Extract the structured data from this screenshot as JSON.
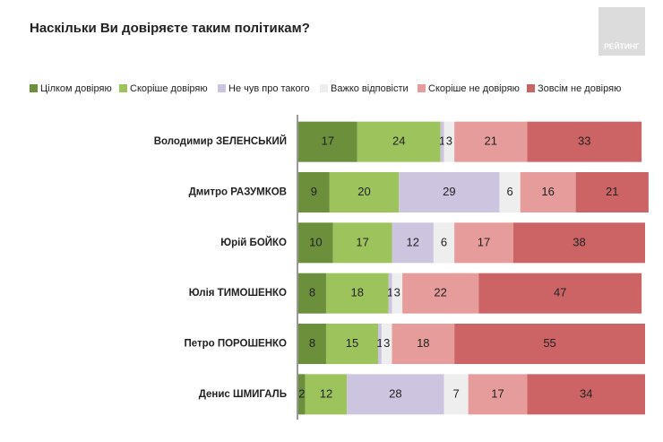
{
  "chart_data": {
    "type": "stacked-bar-horizontal",
    "title": "Наскільки Ви довіряєте таким політикам?",
    "logo": "РЕЙТИНГ",
    "categories": [
      "Володимир ЗЕЛЕНСЬКИЙ",
      "Дмитро РАЗУМКОВ",
      "Юрій БОЙКО",
      "Юлія ТИМОШЕНКО",
      "Петро ПОРОШЕНКО",
      "Денис ШМИГАЛЬ"
    ],
    "series": [
      {
        "name": "Цілком довіряю",
        "color": "#6b8f3b",
        "values": [
          17,
          9,
          10,
          8,
          8,
          2
        ]
      },
      {
        "name": "Скоріше довіряю",
        "color": "#9dc35c",
        "values": [
          24,
          20,
          17,
          18,
          15,
          12
        ]
      },
      {
        "name": "Не чув про такого",
        "color": "#cdc5df",
        "values": [
          1,
          29,
          12,
          1,
          1,
          28
        ]
      },
      {
        "name": "Важко відповісти",
        "color": "#eeeeee",
        "values": [
          3,
          6,
          6,
          3,
          3,
          7
        ]
      },
      {
        "name": "Скоріше не довіряю",
        "color": "#e59c9b",
        "values": [
          21,
          16,
          17,
          22,
          18,
          17
        ]
      },
      {
        "name": "Зовсім не довіряю",
        "color": "#cc6466",
        "values": [
          33,
          21,
          38,
          47,
          55,
          34
        ]
      }
    ],
    "xlim": [
      0,
      100
    ],
    "legend": "top"
  }
}
